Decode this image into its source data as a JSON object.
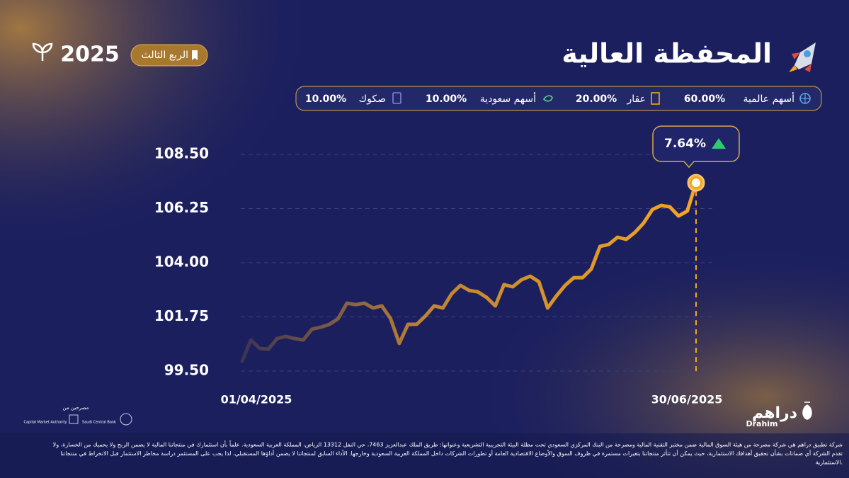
{
  "header": {
    "title": "المحفظة العالية",
    "year": "2025",
    "quarter": "الربع الثالث"
  },
  "allocations": [
    {
      "name": "أسهم عالمية",
      "value": "60.00%"
    },
    {
      "name": "عقار",
      "value": "20.00%"
    },
    {
      "name": "أسهم سعودية",
      "value": "10.00%"
    },
    {
      "name": "صكوك",
      "value": "10.00%"
    }
  ],
  "chart_data": {
    "type": "line",
    "annotation": "7.64%",
    "categories": [
      "01/04/2025",
      null,
      null,
      null,
      null,
      null,
      null,
      null,
      null,
      null,
      null,
      null,
      null,
      null,
      null,
      null,
      null,
      null,
      null,
      null,
      null,
      null,
      null,
      null,
      null,
      null,
      null,
      null,
      null,
      null,
      null,
      null,
      null,
      null,
      null,
      null,
      null,
      null,
      null,
      null,
      null,
      null,
      null,
      null,
      null,
      null,
      null,
      null,
      null,
      null,
      null,
      null,
      "30/06/2025"
    ],
    "series": [
      {
        "color": "#f5a623",
        "values": [
          99.91,
          100.79,
          100.44,
          100.41,
          100.85,
          100.94,
          100.85,
          100.79,
          101.24,
          101.32,
          101.44,
          101.68,
          102.32,
          102.26,
          102.32,
          102.12,
          102.21,
          101.68,
          100.65,
          101.44,
          101.44,
          101.79,
          102.21,
          102.12,
          102.71,
          103.06,
          102.85,
          102.79,
          102.56,
          102.21,
          103.09,
          103.0,
          103.29,
          103.44,
          103.21,
          102.12,
          102.62,
          103.06,
          103.38,
          103.38,
          103.74,
          104.68,
          104.76,
          105.06,
          104.97,
          105.26,
          105.65,
          106.21,
          106.38,
          106.32,
          105.94,
          106.15,
          107.32
        ]
      }
    ],
    "ylim": [
      99.5,
      108.5
    ],
    "yticks": [
      {
        "value": 99.5,
        "label": "99.50"
      },
      {
        "value": 101.75,
        "label": "101.75"
      },
      {
        "value": 104,
        "label": "104.00"
      },
      {
        "value": 106.25,
        "label": "106.25"
      },
      {
        "value": 108.5,
        "label": "108.50"
      }
    ],
    "grid": true
  },
  "brand": {
    "name": "دراهم",
    "latin": "Drahim"
  },
  "sponsors": {
    "label": "مصرحين من",
    "bank": "Saudi Central Bank",
    "authority": "Capital Market Authority"
  },
  "disclaimer": [
    "شركة تطبيق دراهم هي شركة مصرحة من هيئة السوق المالية ضمن مختبر التقنية المالية ومصرحة من البنك المركزي السعودي تحت مظلة البيئة التجريبية التشريعية وعنوانها: طريق الملك عبدالعزيز 7463، حي النفل 13312 الرياض، المملكة العربية السعودية. علماً بأن استثمارك في منتجاتنا المالية لا يضمن الربح ولا يحميك من الخسارة، ولا",
    "تقدم الشركة أي ضمانات بشأن تحقيق أهدافك الاستثمارية، حيث يمكن أن تتأثر منتجاتنا بتغيرات مستمرة في ظروف السوق والأوضاع الاقتصادية العامة أو تطورات الشركات داخل المملكة العربية السعودية وخارجها. الأداء السابق لمنتجاتنا لا يضمن أداؤها المستقبلي، لذا يجب على المستثمر دراسة مخاطر الاستثمار قبل الانخراط في منتجاتنا",
    "الاستثمارية."
  ]
}
